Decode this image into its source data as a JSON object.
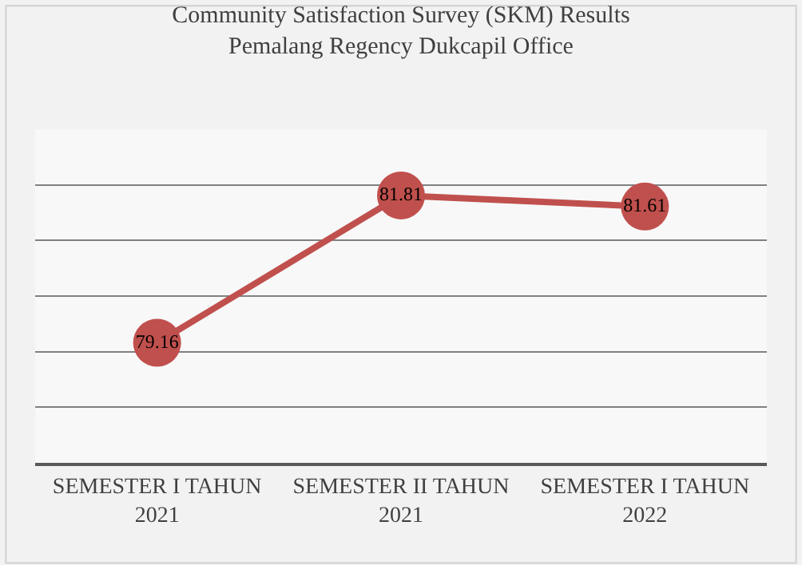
{
  "chart_data": {
    "type": "line",
    "title": "Community Satisfaction Survey (SKM) Results\nPemalang Regency Dukcapil Office",
    "categories": [
      "SEMESTER I TAHUN 2021",
      "SEMESTER II TAHUN 2021",
      "SEMESTER I TAHUN 2022"
    ],
    "series": [
      {
        "color": "#c0504d",
        "values": [
          79.16,
          81.81,
          81.61
        ]
      }
    ],
    "ylim": [
      77,
      83
    ],
    "yticks": [
      {
        "value": 78,
        "label": null
      },
      {
        "value": 79,
        "label": null
      },
      {
        "value": 80,
        "label": null
      },
      {
        "value": 81,
        "label": null
      },
      {
        "value": 82,
        "label": null
      }
    ],
    "tick_labels": "x",
    "grid": "y",
    "data_labels": true,
    "marker": "circle",
    "line_style": "solid"
  }
}
